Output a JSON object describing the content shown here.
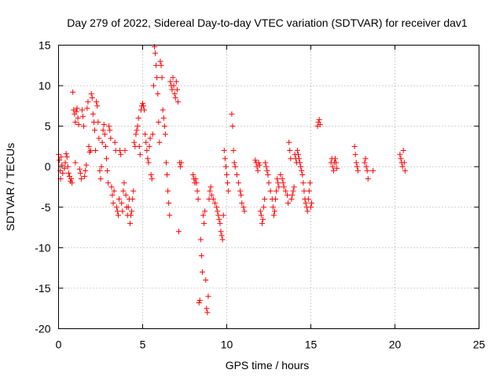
{
  "chart_data": {
    "type": "scatter",
    "title": "Day 279 of 2022, Sidereal Day-to-day VTEC variation (SDTVAR) for receiver dav1",
    "xlabel": "GPS time / hours",
    "ylabel": "SDTVAR / TECUs",
    "xlim": [
      0,
      25
    ],
    "ylim": [
      -20,
      15
    ],
    "xticks": [
      0,
      5,
      10,
      15,
      20,
      25
    ],
    "yticks": [
      -20,
      -15,
      -10,
      -5,
      0,
      5,
      10,
      15
    ],
    "grid": true,
    "marker": "plus",
    "color": "#ff0000",
    "series": [
      {
        "name": "SDTVAR",
        "points": [
          [
            0.0,
            1.5
          ],
          [
            0.05,
            0.8
          ],
          [
            0.1,
            -0.5
          ],
          [
            0.12,
            -1.5
          ],
          [
            0.15,
            1.2
          ],
          [
            0.2,
            0.2
          ],
          [
            0.25,
            -0.8
          ],
          [
            0.35,
            -0.2
          ],
          [
            0.4,
            0.5
          ],
          [
            0.45,
            1.6
          ],
          [
            0.5,
            1.2
          ],
          [
            0.55,
            0.0
          ],
          [
            0.6,
            -0.8
          ],
          [
            0.65,
            -1.2
          ],
          [
            0.7,
            -1.8
          ],
          [
            0.75,
            -1.5
          ],
          [
            0.8,
            -2.0
          ],
          [
            0.85,
            9.2
          ],
          [
            0.9,
            7.0
          ],
          [
            0.95,
            6.5
          ],
          [
            1.0,
            5.5
          ],
          [
            1.0,
            0.5
          ],
          [
            1.05,
            6.8
          ],
          [
            1.1,
            7.2
          ],
          [
            1.15,
            6.0
          ],
          [
            1.2,
            5.2
          ],
          [
            1.25,
            -0.3
          ],
          [
            1.3,
            -0.8
          ],
          [
            1.35,
            -1.5
          ],
          [
            1.4,
            7.0
          ],
          [
            1.45,
            6.2
          ],
          [
            1.5,
            5.0
          ],
          [
            1.55,
            -1.2
          ],
          [
            1.6,
            -0.5
          ],
          [
            1.65,
            0.2
          ],
          [
            1.7,
            7.2
          ],
          [
            1.75,
            8.0
          ],
          [
            1.8,
            2.5
          ],
          [
            1.85,
            1.8
          ],
          [
            1.9,
            2.0
          ],
          [
            1.95,
            9.0
          ],
          [
            2.0,
            8.5
          ],
          [
            2.05,
            6.5
          ],
          [
            2.1,
            5.5
          ],
          [
            2.15,
            4.5
          ],
          [
            2.2,
            2.0
          ],
          [
            2.25,
            8.0
          ],
          [
            2.3,
            7.5
          ],
          [
            2.35,
            5.5
          ],
          [
            2.4,
            3.5
          ],
          [
            2.45,
            -0.5
          ],
          [
            2.5,
            -1.5
          ],
          [
            2.55,
            0.0
          ],
          [
            2.6,
            3.0
          ],
          [
            2.65,
            4.5
          ],
          [
            2.7,
            5.2
          ],
          [
            2.75,
            4.0
          ],
          [
            2.8,
            2.5
          ],
          [
            2.85,
            1.0
          ],
          [
            2.9,
            -0.5
          ],
          [
            2.95,
            -2.0
          ],
          [
            3.0,
            5.0
          ],
          [
            3.05,
            4.5
          ],
          [
            3.1,
            3.5
          ],
          [
            3.15,
            -2.5
          ],
          [
            3.2,
            -3.5
          ],
          [
            3.25,
            -4.5
          ],
          [
            3.3,
            -3.0
          ],
          [
            3.35,
            3.0
          ],
          [
            3.4,
            2.0
          ],
          [
            3.45,
            -5.0
          ],
          [
            3.5,
            -5.5
          ],
          [
            3.55,
            -6.0
          ],
          [
            3.6,
            -4.0
          ],
          [
            3.65,
            2.0
          ],
          [
            3.7,
            1.5
          ],
          [
            3.75,
            -4.5
          ],
          [
            3.8,
            -5.5
          ],
          [
            3.85,
            -3.0
          ],
          [
            3.9,
            -2.0
          ],
          [
            3.95,
            2.0
          ],
          [
            4.0,
            -3.5
          ],
          [
            4.05,
            -5.0
          ],
          [
            4.1,
            -6.0
          ],
          [
            4.15,
            -5.0
          ],
          [
            4.2,
            -4.0
          ],
          [
            4.25,
            -7.0
          ],
          [
            4.3,
            -6.0
          ],
          [
            4.35,
            -5.5
          ],
          [
            4.4,
            -4.0
          ],
          [
            4.45,
            -3.0
          ],
          [
            4.5,
            3.0
          ],
          [
            4.55,
            2.5
          ],
          [
            4.6,
            4.0
          ],
          [
            4.65,
            4.5
          ],
          [
            4.7,
            5.0
          ],
          [
            4.75,
            6.0
          ],
          [
            4.8,
            2.5
          ],
          [
            4.85,
            1.5
          ],
          [
            4.9,
            7.0
          ],
          [
            4.95,
            7.5
          ],
          [
            5.0,
            7.8
          ],
          [
            5.05,
            7.5
          ],
          [
            5.1,
            7.0
          ],
          [
            5.15,
            4.0
          ],
          [
            5.2,
            3.0
          ],
          [
            5.25,
            2.0
          ],
          [
            5.3,
            1.0
          ],
          [
            5.35,
            0.5
          ],
          [
            5.4,
            2.5
          ],
          [
            5.45,
            3.5
          ],
          [
            5.5,
            -1.0
          ],
          [
            5.55,
            -1.5
          ],
          [
            5.6,
            4.0
          ],
          [
            5.65,
            10.0
          ],
          [
            5.7,
            14.8
          ],
          [
            5.75,
            14.0
          ],
          [
            5.8,
            12.5
          ],
          [
            5.85,
            11.0
          ],
          [
            5.9,
            9.0
          ],
          [
            5.95,
            5.5
          ],
          [
            6.0,
            3.0
          ],
          [
            6.05,
            13.0
          ],
          [
            6.1,
            12.5
          ],
          [
            6.15,
            11.0
          ],
          [
            6.2,
            7.0
          ],
          [
            6.25,
            6.0
          ],
          [
            6.3,
            5.0
          ],
          [
            6.35,
            4.0
          ],
          [
            6.4,
            0.5
          ],
          [
            6.45,
            -1.0
          ],
          [
            6.5,
            -3.0
          ],
          [
            6.55,
            -4.5
          ],
          [
            6.6,
            -6.0
          ],
          [
            6.65,
            10.5
          ],
          [
            6.7,
            10.0
          ],
          [
            6.75,
            9.5
          ],
          [
            6.8,
            11.0
          ],
          [
            6.85,
            10.0
          ],
          [
            6.9,
            9.0
          ],
          [
            6.95,
            8.5
          ],
          [
            7.0,
            10.5
          ],
          [
            7.05,
            9.5
          ],
          [
            7.1,
            8.0
          ],
          [
            7.15,
            -8.0
          ],
          [
            7.2,
            0.5
          ],
          [
            7.25,
            0.0
          ],
          [
            7.3,
            0.5
          ],
          [
            8.0,
            -1.0
          ],
          [
            8.05,
            -1.5
          ],
          [
            8.1,
            -2.0
          ],
          [
            8.15,
            -1.5
          ],
          [
            8.2,
            -2.0
          ],
          [
            8.25,
            -3.0
          ],
          [
            8.3,
            -4.0
          ],
          [
            8.35,
            -16.8
          ],
          [
            8.4,
            -16.5
          ],
          [
            8.45,
            -9.0
          ],
          [
            8.5,
            -11.0
          ],
          [
            8.55,
            -13.0
          ],
          [
            8.6,
            -6.0
          ],
          [
            8.65,
            -7.0
          ],
          [
            8.7,
            -5.5
          ],
          [
            8.75,
            -14.0
          ],
          [
            8.8,
            -17.5
          ],
          [
            8.85,
            -18.0
          ],
          [
            8.9,
            -16.0
          ],
          [
            8.95,
            -4.0
          ],
          [
            9.0,
            -3.0
          ],
          [
            9.05,
            -2.5
          ],
          [
            9.1,
            -3.5
          ],
          [
            9.2,
            -4.0
          ],
          [
            9.3,
            -4.5
          ],
          [
            9.4,
            -5.0
          ],
          [
            9.45,
            -5.5
          ],
          [
            9.5,
            -6.0
          ],
          [
            9.55,
            -6.5
          ],
          [
            9.6,
            -7.0
          ],
          [
            9.65,
            -8.0
          ],
          [
            9.7,
            -8.5
          ],
          [
            9.75,
            -9.0
          ],
          [
            9.8,
            -6.0
          ],
          [
            9.85,
            2.0
          ],
          [
            9.9,
            1.0
          ],
          [
            9.95,
            0.0
          ],
          [
            10.0,
            -1.0
          ],
          [
            10.05,
            -2.0
          ],
          [
            10.1,
            -3.0
          ],
          [
            10.3,
            6.5
          ],
          [
            10.35,
            5.0
          ],
          [
            10.4,
            2.0
          ],
          [
            10.45,
            0.5
          ],
          [
            10.5,
            0.0
          ],
          [
            10.6,
            -1.0
          ],
          [
            10.7,
            -2.0
          ],
          [
            10.8,
            -3.0
          ],
          [
            10.85,
            -3.5
          ],
          [
            10.9,
            -4.5
          ],
          [
            11.0,
            -5.0
          ],
          [
            11.05,
            -5.5
          ],
          [
            11.7,
            0.8
          ],
          [
            11.75,
            0.5
          ],
          [
            11.8,
            0.0
          ],
          [
            11.85,
            -0.5
          ],
          [
            11.9,
            0.5
          ],
          [
            11.95,
            0.2
          ],
          [
            12.0,
            -5.5
          ],
          [
            12.05,
            -6.0
          ],
          [
            12.1,
            -7.0
          ],
          [
            12.15,
            -6.5
          ],
          [
            12.2,
            -5.0
          ],
          [
            12.25,
            -4.0
          ],
          [
            12.3,
            0.5
          ],
          [
            12.35,
            0.0
          ],
          [
            12.4,
            -0.5
          ],
          [
            12.45,
            -1.0
          ],
          [
            12.5,
            -2.0
          ],
          [
            12.6,
            -3.0
          ],
          [
            12.7,
            -4.0
          ],
          [
            12.75,
            -5.0
          ],
          [
            12.8,
            -6.0
          ],
          [
            12.85,
            -5.5
          ],
          [
            12.9,
            -4.0
          ],
          [
            12.95,
            -3.0
          ],
          [
            13.0,
            -1.5
          ],
          [
            13.05,
            -2.0
          ],
          [
            13.1,
            -2.5
          ],
          [
            13.2,
            -1.0
          ],
          [
            13.3,
            -1.5
          ],
          [
            13.35,
            -2.0
          ],
          [
            13.4,
            -2.5
          ],
          [
            13.5,
            -3.0
          ],
          [
            13.6,
            -3.5
          ],
          [
            13.65,
            -4.5
          ],
          [
            13.7,
            3.0
          ],
          [
            13.75,
            2.0
          ],
          [
            13.8,
            1.0
          ],
          [
            13.85,
            -4.0
          ],
          [
            13.9,
            -3.5
          ],
          [
            13.95,
            -3.0
          ],
          [
            14.0,
            -2.5
          ],
          [
            14.05,
            1.5
          ],
          [
            14.1,
            1.0
          ],
          [
            14.15,
            0.5
          ],
          [
            14.2,
            2.0
          ],
          [
            14.25,
            1.5
          ],
          [
            14.3,
            1.0
          ],
          [
            14.35,
            0.5
          ],
          [
            14.4,
            0.0
          ],
          [
            14.45,
            -0.5
          ],
          [
            14.5,
            -1.0
          ],
          [
            14.55,
            -2.0
          ],
          [
            14.6,
            -3.0
          ],
          [
            14.65,
            -4.0
          ],
          [
            14.7,
            -4.5
          ],
          [
            14.75,
            -5.0
          ],
          [
            14.8,
            -5.5
          ],
          [
            14.85,
            -4.0
          ],
          [
            14.9,
            -3.0
          ],
          [
            14.95,
            -2.0
          ],
          [
            15.0,
            -5.0
          ],
          [
            15.05,
            -4.5
          ],
          [
            15.4,
            5.0
          ],
          [
            15.45,
            5.5
          ],
          [
            15.5,
            5.8
          ],
          [
            15.55,
            5.2
          ],
          [
            16.2,
            0.5
          ],
          [
            16.25,
            1.0
          ],
          [
            16.3,
            0.0
          ],
          [
            16.35,
            -0.5
          ],
          [
            16.4,
            0.5
          ],
          [
            16.45,
            1.0
          ],
          [
            16.5,
            0.5
          ],
          [
            16.55,
            -0.2
          ],
          [
            17.6,
            2.5
          ],
          [
            17.65,
            1.5
          ],
          [
            17.7,
            0.5
          ],
          [
            17.75,
            0.0
          ],
          [
            17.8,
            -0.5
          ],
          [
            18.2,
            0.5
          ],
          [
            18.25,
            1.0
          ],
          [
            18.3,
            0.0
          ],
          [
            18.35,
            -0.5
          ],
          [
            18.4,
            -1.5
          ],
          [
            18.7,
            -0.5
          ],
          [
            20.3,
            1.5
          ],
          [
            20.35,
            1.0
          ],
          [
            20.4,
            0.5
          ],
          [
            20.45,
            0.0
          ],
          [
            20.5,
            2.0
          ],
          [
            20.55,
            0.5
          ],
          [
            20.6,
            -0.5
          ]
        ]
      }
    ]
  }
}
